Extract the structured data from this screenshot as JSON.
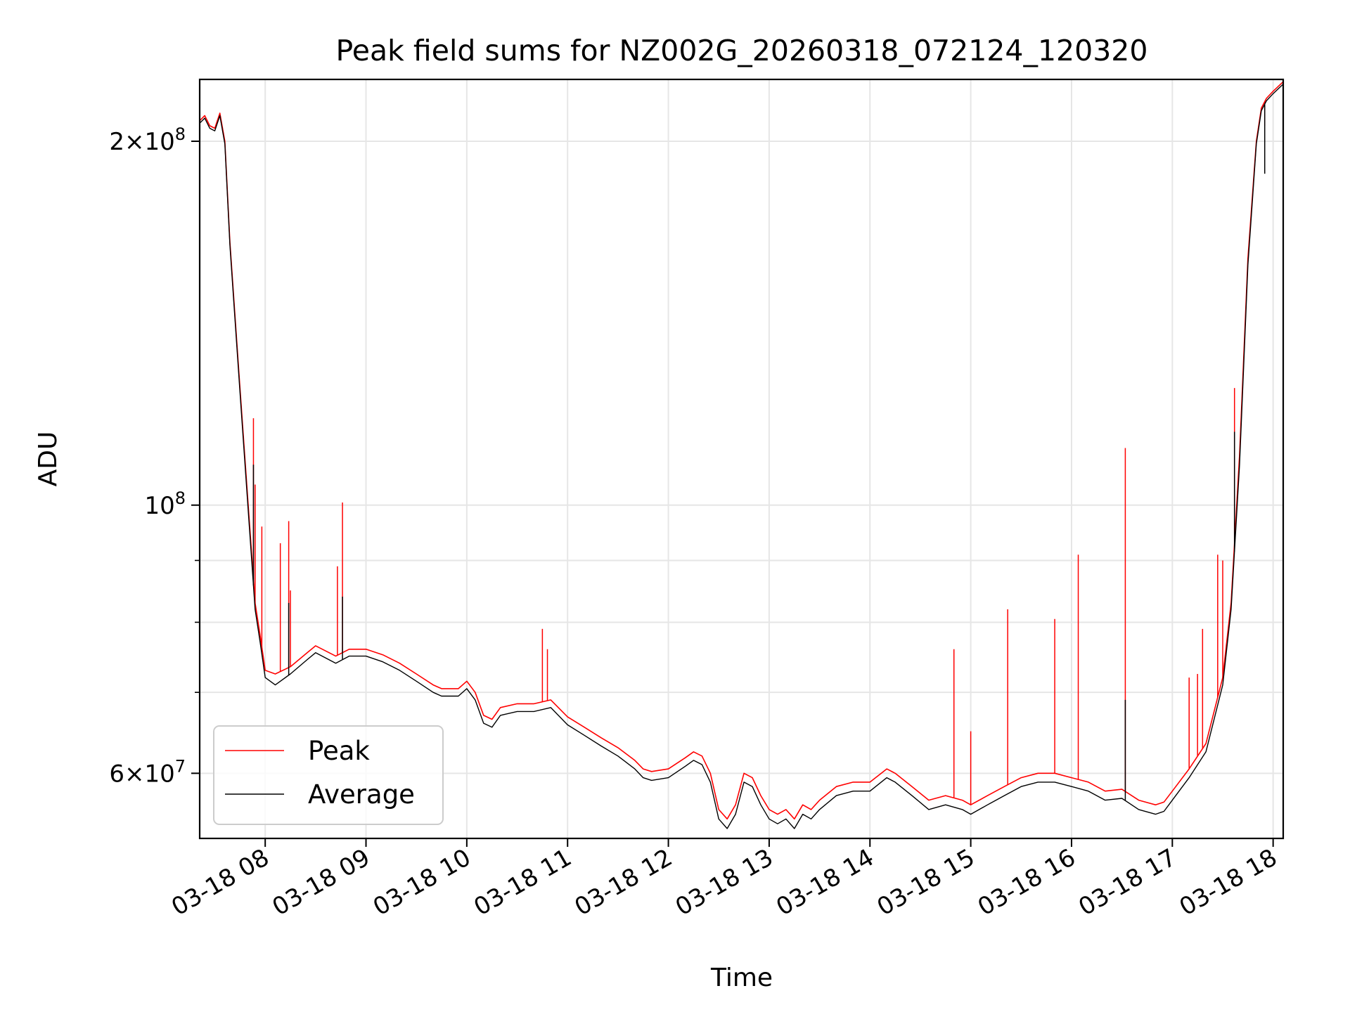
{
  "chart_data": {
    "type": "line",
    "title": "Peak field sums for NZ002G_20260318_072124_120320",
    "xlabel": "Time",
    "ylabel": "ADU",
    "xaxis_type": "time",
    "xlim": [
      "03-18 07:21",
      "03-18 18:06"
    ],
    "xticks": [
      "03-18 08",
      "03-18 09",
      "03-18 10",
      "03-18 11",
      "03-18 12",
      "03-18 13",
      "03-18 14",
      "03-18 15",
      "03-18 16",
      "03-18 17",
      "03-18 18"
    ],
    "y_scale": "log",
    "ylim": [
      53000000,
      225000000
    ],
    "yticks_labeled": [
      {
        "value": 60000000,
        "mantissa": "6",
        "exponent": "7"
      },
      {
        "value": 100000000,
        "mantissa": "",
        "exponent": "8"
      },
      {
        "value": 200000000,
        "mantissa": "2",
        "exponent": "8"
      }
    ],
    "yticks_minor": [
      70000000,
      80000000,
      90000000
    ],
    "grid": true,
    "legend_position": "lower-left",
    "series": [
      {
        "name": "Peak",
        "color": "#ff0000",
        "x": [
          "03-18 07:21",
          "03-18 07:24",
          "03-18 07:27",
          "03-18 07:30",
          "03-18 07:33",
          "03-18 07:36",
          "03-18 07:39",
          "03-18 07:45",
          "03-18 07:51",
          "03-18 07:54",
          "03-18 07:57",
          "03-18 08:00",
          "03-18 08:06",
          "03-18 08:15",
          "03-18 08:25",
          "03-18 08:30",
          "03-18 08:42",
          "03-18 08:50",
          "03-18 09:00",
          "03-18 09:10",
          "03-18 09:20",
          "03-18 09:30",
          "03-18 09:40",
          "03-18 09:45",
          "03-18 09:55",
          "03-18 10:00",
          "03-18 10:05",
          "03-18 10:10",
          "03-18 10:15",
          "03-18 10:20",
          "03-18 10:30",
          "03-18 10:40",
          "03-18 10:50",
          "03-18 11:00",
          "03-18 11:10",
          "03-18 11:20",
          "03-18 11:30",
          "03-18 11:40",
          "03-18 11:45",
          "03-18 11:50",
          "03-18 12:00",
          "03-18 12:10",
          "03-18 12:15",
          "03-18 12:20",
          "03-18 12:25",
          "03-18 12:30",
          "03-18 12:35",
          "03-18 12:40",
          "03-18 12:45",
          "03-18 12:50",
          "03-18 12:55",
          "03-18 13:00",
          "03-18 13:05",
          "03-18 13:10",
          "03-18 13:15",
          "03-18 13:20",
          "03-18 13:25",
          "03-18 13:30",
          "03-18 13:40",
          "03-18 13:50",
          "03-18 14:00",
          "03-18 14:10",
          "03-18 14:15",
          "03-18 14:25",
          "03-18 14:35",
          "03-18 14:45",
          "03-18 14:55",
          "03-18 15:00",
          "03-18 15:10",
          "03-18 15:20",
          "03-18 15:30",
          "03-18 15:40",
          "03-18 15:50",
          "03-18 16:00",
          "03-18 16:10",
          "03-18 16:20",
          "03-18 16:30",
          "03-18 16:40",
          "03-18 16:50",
          "03-18 16:55",
          "03-18 17:00",
          "03-18 17:10",
          "03-18 17:20",
          "03-18 17:30",
          "03-18 17:35",
          "03-18 17:40",
          "03-18 17:45",
          "03-18 17:50",
          "03-18 17:53",
          "03-18 17:56",
          "03-18 18:00",
          "03-18 18:06"
        ],
        "y": [
          208000000,
          210000000,
          206000000,
          205000000,
          211000000,
          200000000,
          165000000,
          125000000,
          95000000,
          83000000,
          78000000,
          73000000,
          72500000,
          73500000,
          75500000,
          76500000,
          75000000,
          76000000,
          76000000,
          75200000,
          74000000,
          72500000,
          71000000,
          70500000,
          70500000,
          71500000,
          70000000,
          67000000,
          66500000,
          68000000,
          68500000,
          68500000,
          69000000,
          66800000,
          65500000,
          64200000,
          63000000,
          61500000,
          60500000,
          60200000,
          60500000,
          61800000,
          62500000,
          62000000,
          60000000,
          56000000,
          55000000,
          56500000,
          60000000,
          59500000,
          57500000,
          56000000,
          55500000,
          56000000,
          55000000,
          56500000,
          56000000,
          57000000,
          58500000,
          59000000,
          59000000,
          60500000,
          60000000,
          58500000,
          57000000,
          57500000,
          57000000,
          56500000,
          57500000,
          58500000,
          59500000,
          60000000,
          60000000,
          59500000,
          59000000,
          58000000,
          58200000,
          57000000,
          56500000,
          56800000,
          58000000,
          60500000,
          63500000,
          72000000,
          83000000,
          110000000,
          160000000,
          200000000,
          213000000,
          217000000,
          220000000,
          224000000
        ],
        "spikes": [
          {
            "x": "03-18 07:53",
            "y": 118000000
          },
          {
            "x": "03-18 07:54",
            "y": 104000000
          },
          {
            "x": "03-18 07:58",
            "y": 96000000
          },
          {
            "x": "03-18 08:09",
            "y": 93000000
          },
          {
            "x": "03-18 08:14",
            "y": 97000000
          },
          {
            "x": "03-18 08:15",
            "y": 85000000
          },
          {
            "x": "03-18 08:43",
            "y": 89000000
          },
          {
            "x": "03-18 08:46",
            "y": 100500000
          },
          {
            "x": "03-18 10:45",
            "y": 79000000
          },
          {
            "x": "03-18 10:48",
            "y": 76000000
          },
          {
            "x": "03-18 14:50",
            "y": 76000000
          },
          {
            "x": "03-18 15:00",
            "y": 65000000
          },
          {
            "x": "03-18 15:22",
            "y": 82000000
          },
          {
            "x": "03-18 15:50",
            "y": 80500000
          },
          {
            "x": "03-18 16:04",
            "y": 91000000
          },
          {
            "x": "03-18 16:32",
            "y": 111500000
          },
          {
            "x": "03-18 17:10",
            "y": 72000000
          },
          {
            "x": "03-18 17:15",
            "y": 72500000
          },
          {
            "x": "03-18 17:18",
            "y": 79000000
          },
          {
            "x": "03-18 17:27",
            "y": 91000000
          },
          {
            "x": "03-18 17:30",
            "y": 90000000
          },
          {
            "x": "03-18 17:37",
            "y": 125000000
          },
          {
            "x": "03-18 17:55",
            "y": 206000000
          }
        ]
      },
      {
        "name": "Average",
        "color": "#000000",
        "x": [
          "03-18 07:21",
          "03-18 07:24",
          "03-18 07:27",
          "03-18 07:30",
          "03-18 07:33",
          "03-18 07:36",
          "03-18 07:39",
          "03-18 07:45",
          "03-18 07:51",
          "03-18 07:54",
          "03-18 07:57",
          "03-18 08:00",
          "03-18 08:06",
          "03-18 08:15",
          "03-18 08:25",
          "03-18 08:30",
          "03-18 08:42",
          "03-18 08:50",
          "03-18 09:00",
          "03-18 09:10",
          "03-18 09:20",
          "03-18 09:30",
          "03-18 09:40",
          "03-18 09:45",
          "03-18 09:55",
          "03-18 10:00",
          "03-18 10:05",
          "03-18 10:10",
          "03-18 10:15",
          "03-18 10:20",
          "03-18 10:30",
          "03-18 10:40",
          "03-18 10:50",
          "03-18 11:00",
          "03-18 11:10",
          "03-18 11:20",
          "03-18 11:30",
          "03-18 11:40",
          "03-18 11:45",
          "03-18 11:50",
          "03-18 12:00",
          "03-18 12:10",
          "03-18 12:15",
          "03-18 12:20",
          "03-18 12:25",
          "03-18 12:30",
          "03-18 12:35",
          "03-18 12:40",
          "03-18 12:45",
          "03-18 12:50",
          "03-18 12:55",
          "03-18 13:00",
          "03-18 13:05",
          "03-18 13:10",
          "03-18 13:15",
          "03-18 13:20",
          "03-18 13:25",
          "03-18 13:30",
          "03-18 13:40",
          "03-18 13:50",
          "03-18 14:00",
          "03-18 14:10",
          "03-18 14:15",
          "03-18 14:25",
          "03-18 14:35",
          "03-18 14:45",
          "03-18 14:55",
          "03-18 15:00",
          "03-18 15:10",
          "03-18 15:20",
          "03-18 15:30",
          "03-18 15:40",
          "03-18 15:50",
          "03-18 16:00",
          "03-18 16:10",
          "03-18 16:20",
          "03-18 16:30",
          "03-18 16:40",
          "03-18 16:50",
          "03-18 16:55",
          "03-18 17:00",
          "03-18 17:10",
          "03-18 17:20",
          "03-18 17:30",
          "03-18 17:35",
          "03-18 17:40",
          "03-18 17:45",
          "03-18 17:50",
          "03-18 17:53",
          "03-18 17:56",
          "03-18 18:00",
          "03-18 18:06"
        ],
        "y": [
          207000000,
          209000000,
          205000000,
          204000000,
          210000000,
          199000000,
          164000000,
          124000000,
          94000000,
          82000000,
          77000000,
          72000000,
          71000000,
          72500000,
          74500000,
          75500000,
          74000000,
          75000000,
          75000000,
          74200000,
          73000000,
          71500000,
          70000000,
          69500000,
          69500000,
          70500000,
          69000000,
          66000000,
          65500000,
          67000000,
          67500000,
          67500000,
          68000000,
          65800000,
          64500000,
          63200000,
          62000000,
          60500000,
          59500000,
          59200000,
          59500000,
          60800000,
          61500000,
          61000000,
          59000000,
          55000000,
          54000000,
          55500000,
          59000000,
          58500000,
          56500000,
          55000000,
          54500000,
          55000000,
          54000000,
          55500000,
          55000000,
          56000000,
          57500000,
          58000000,
          58000000,
          59500000,
          59000000,
          57500000,
          56000000,
          56500000,
          56000000,
          55500000,
          56500000,
          57500000,
          58500000,
          59000000,
          59000000,
          58500000,
          58000000,
          57000000,
          57200000,
          56000000,
          55500000,
          55800000,
          57000000,
          59500000,
          62500000,
          71000000,
          82000000,
          108000000,
          158000000,
          199000000,
          212000000,
          216000000,
          219000000,
          223000000
        ],
        "spikes": [
          {
            "x": "03-18 07:53",
            "y": 108000000
          },
          {
            "x": "03-18 08:14",
            "y": 83000000
          },
          {
            "x": "03-18 08:46",
            "y": 84000000
          },
          {
            "x": "03-18 16:32",
            "y": 69000000
          },
          {
            "x": "03-18 17:37",
            "y": 115000000
          },
          {
            "x": "03-18 17:55",
            "y": 188000000
          }
        ]
      }
    ]
  }
}
